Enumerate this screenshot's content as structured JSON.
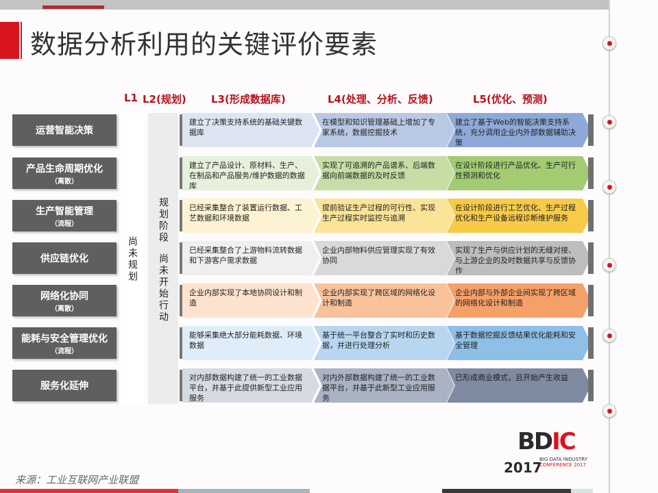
{
  "title": "数据分析利用的关键评价要素",
  "levels": [
    "L1",
    "L2(规划)",
    "L3(形成数据库)",
    "L4(处理、分析、反馈)",
    "L5(优化、预测)"
  ],
  "l1_text": "尚未规划",
  "l2_text_a": "规划阶段",
  "l2_text_b": "尚未开始行动",
  "rows": [
    {
      "label": "运营智能决策",
      "sub": "",
      "cells": [
        "建立了决策支持系统的基础关键数据库",
        "在模型和知识管理基础上增加了专家系统，数据挖掘技术",
        "建立了基于Web的智能决策支持系统，充分调用企业内外部数据辅助决策"
      ],
      "colors": [
        "#dde5f2",
        "#b9c9e4",
        "#8ea9d8"
      ]
    },
    {
      "label": "产品生命周期优化",
      "sub": "（离散）",
      "cells": [
        "建立了产品设计、原材料、生产、在制品和产品服务/维护数据的数据库",
        "实现了可追溯的产品谱系、后端数据向前端数据的及时反馈",
        "在设计阶段进行产品优化、生产可行性预测和优化"
      ],
      "colors": [
        "#e6f0da",
        "#c6dea6",
        "#a2cb72"
      ]
    },
    {
      "label": "生产智能管理",
      "sub": "（流程）",
      "cells": [
        "已经采集整合了装置运行数据、工艺数据和环境数据",
        "提前验证生产过程的可行性、实现生产过程实时监控与追溯",
        "在设计阶段进行工艺优化、生产过程优化和生产设备远程诊断维护服务"
      ],
      "colors": [
        "#fdf3d3",
        "#fbe397",
        "#f7cb48"
      ]
    },
    {
      "label": "供应链优化",
      "sub": "",
      "cells": [
        "已经采集整合了上游物料流转数据和下游客户需求数据",
        "企业内部物料供应管理实现了有效协同",
        "实现了生产与供应计划的无缝对接、与上游企业的及时数据共享与反馈协作"
      ],
      "colors": [
        "#efefef",
        "#d9d9d9",
        "#bdbdbd"
      ]
    },
    {
      "label": "网络化协同",
      "sub": "（离散）",
      "cells": [
        "企业内部实现了本地协同设计和制造",
        "企业内部实现了跨区域的网络化设计和制造",
        "企业内部与外部企业间实现了跨区域的网络化设计和制造"
      ],
      "colors": [
        "#fde2ce",
        "#f9c29b",
        "#f5a068"
      ]
    },
    {
      "label": "能耗与安全管理优化",
      "sub": "（流程）",
      "cells": [
        "能够采集绝大部分能耗数据、环境数据",
        "基于统一平台整合了实时和历史数据，并进行处理分析",
        "基于数据挖掘反馈结果优化能耗和安全管理"
      ],
      "colors": [
        "#dfedf8",
        "#b8d6ef",
        "#8dbfe7"
      ]
    },
    {
      "label": "服务化延伸",
      "sub": "",
      "cells": [
        "对内部数据构建了统一的工业数据平台，并基于此提供新型工业应用服务",
        "对内外部数据构建了统一的工业数据平台，并基于此新型工业应用服务",
        "已形成商业模式，且开始产生收益"
      ],
      "colors": [
        "#d6dbe3",
        "#a9b3c3",
        "#7e8ba0"
      ]
    }
  ],
  "source": "来源：工业互联网产业联盟",
  "logo": {
    "brand": "BDIC",
    "line1": "BIG DATA INDUSTRY",
    "line2": "CONFERENCE 2017",
    "year": "2017"
  },
  "accent_color": "#d8141f"
}
